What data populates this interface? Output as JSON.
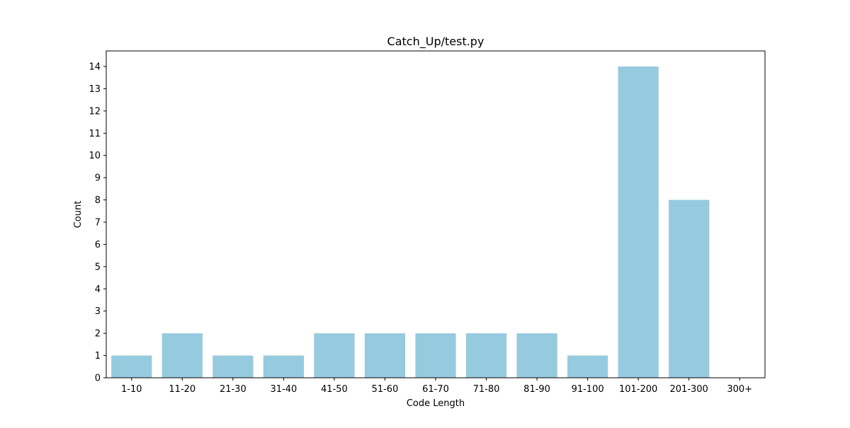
{
  "chart_data": {
    "type": "bar",
    "title": "Catch_Up/test.py",
    "xlabel": "Code Length",
    "ylabel": "Count",
    "categories": [
      "1-10",
      "11-20",
      "21-30",
      "31-40",
      "41-50",
      "51-60",
      "61-70",
      "71-80",
      "81-90",
      "91-100",
      "101-200",
      "201-300",
      "300+"
    ],
    "values": [
      1,
      2,
      1,
      1,
      2,
      2,
      2,
      2,
      2,
      1,
      14,
      8,
      0
    ],
    "yticks": [
      0,
      1,
      2,
      3,
      4,
      5,
      6,
      7,
      8,
      9,
      10,
      11,
      12,
      13,
      14
    ],
    "ylim": [
      0,
      14.7
    ],
    "grid": false,
    "bar_color": "#96cadf"
  }
}
